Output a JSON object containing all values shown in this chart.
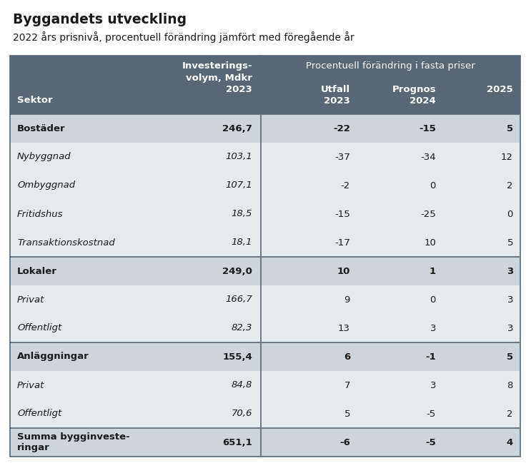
{
  "title": "Byggandets utveckling",
  "subtitle": "2022 års prisnivå, procentuell förändring jämfört med föregående år",
  "header_bg": "#566876",
  "header_text_color": "#ffffff",
  "row_bold_bg": "#cdd5db",
  "row_italic_bg": "#e6eaed",
  "border_color": "#566876",
  "rows": [
    {
      "sektor": "Bostäder",
      "volym": "246,7",
      "u2023": "-22",
      "p2024": "-15",
      "p2025": "5",
      "bold": true,
      "last": false
    },
    {
      "sektor": "Nybyggnad",
      "volym": "103,1",
      "u2023": "-37",
      "p2024": "-34",
      "p2025": "12",
      "bold": false,
      "last": false
    },
    {
      "sektor": "Ombyggnad",
      "volym": "107,1",
      "u2023": "-2",
      "p2024": "0",
      "p2025": "2",
      "bold": false,
      "last": false
    },
    {
      "sektor": "Fritidshus",
      "volym": "18,5",
      "u2023": "-15",
      "p2024": "-25",
      "p2025": "0",
      "bold": false,
      "last": false
    },
    {
      "sektor": "Transaktionskostnad",
      "volym": "18,1",
      "u2023": "-17",
      "p2024": "10",
      "p2025": "5",
      "bold": false,
      "last": false
    },
    {
      "sektor": "Lokaler",
      "volym": "249,0",
      "u2023": "10",
      "p2024": "1",
      "p2025": "3",
      "bold": true,
      "last": false
    },
    {
      "sektor": "Privat",
      "volym": "166,7",
      "u2023": "9",
      "p2024": "0",
      "p2025": "3",
      "bold": false,
      "last": false
    },
    {
      "sektor": "Offentligt",
      "volym": "82,3",
      "u2023": "13",
      "p2024": "3",
      "p2025": "3",
      "bold": false,
      "last": false
    },
    {
      "sektor": "Anläggningar",
      "volym": "155,4",
      "u2023": "6",
      "p2024": "-1",
      "p2025": "5",
      "bold": true,
      "last": false
    },
    {
      "sektor": "Privat",
      "volym": "84,8",
      "u2023": "7",
      "p2024": "3",
      "p2025": "8",
      "bold": false,
      "last": false
    },
    {
      "sektor": "Offentligt",
      "volym": "70,6",
      "u2023": "5",
      "p2024": "-5",
      "p2025": "2",
      "bold": false,
      "last": false
    },
    {
      "sektor": "Summa bygginveste-\nringar",
      "volym": "651,1",
      "u2023": "-6",
      "p2024": "-5",
      "p2025": "4",
      "bold": true,
      "last": true
    }
  ],
  "figsize": [
    7.43,
    6.56
  ],
  "dpi": 100,
  "bg_color": "#ffffff",
  "text_color": "#1a1a1a"
}
